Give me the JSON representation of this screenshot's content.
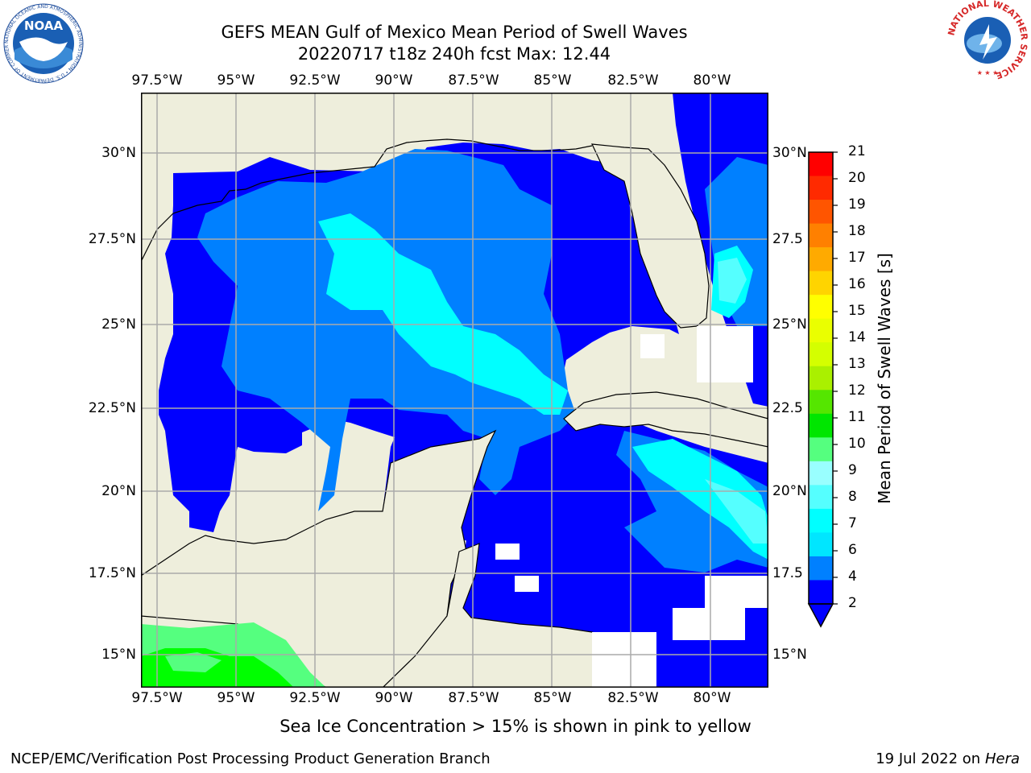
{
  "title": {
    "line1": "GEFS MEAN Gulf of Mexico Mean Period of Swell Waves",
    "line2": "20220717 t18z 240h fcst   Max: 12.44"
  },
  "map": {
    "lon_labels": [
      "97.5°W",
      "95°W",
      "92.5°W",
      "90°W",
      "87.5°W",
      "85°W",
      "82.5°W",
      "80°W"
    ],
    "lat_labels_left": [
      "30°N",
      "27.5°N",
      "25°N",
      "22.5°N",
      "20°N",
      "17.5°N",
      "15°N"
    ],
    "lat_labels_right": [
      "30°N",
      "27.5",
      "25°N",
      "22.5",
      "20°N",
      "17.5",
      "15°N"
    ],
    "land_color": "#eeeedc",
    "grid_color": "#aaaaaa"
  },
  "colorbar": {
    "label": "Mean Period of Swell Waves [s]",
    "ticks": [
      "21",
      "20",
      "19",
      "18",
      "17",
      "16",
      "15",
      "14",
      "13",
      "12",
      "11",
      "10",
      "9",
      "8",
      "7",
      "6",
      "4",
      "2"
    ],
    "colors": [
      "#ff0000",
      "#ff2a00",
      "#ff5500",
      "#ff8000",
      "#ffaa00",
      "#ffd400",
      "#ffff00",
      "#eaff00",
      "#d4ff00",
      "#aaf000",
      "#55e600",
      "#00e600",
      "#55ff7f",
      "#99ffff",
      "#55ffff",
      "#00ffff",
      "#00e6ff",
      "#0080ff",
      "#0000ff"
    ]
  },
  "note": "Sea Ice Concentration > 15% is shown in pink to yellow",
  "footer": {
    "left": "NCEP/EMC/Verification Post Processing Product Generation Branch",
    "date": "19 Jul 2022 on ",
    "host": "Hera"
  },
  "logos": {
    "noaa_text": "NOAA",
    "noaa_ring": "NATIONAL OCEANIC AND ATMOSPHERIC ADMINISTRATION • U.S. DEPARTMENT OF COMMERCE",
    "nws_ring": "NATIONAL WEATHER SERVICE"
  }
}
